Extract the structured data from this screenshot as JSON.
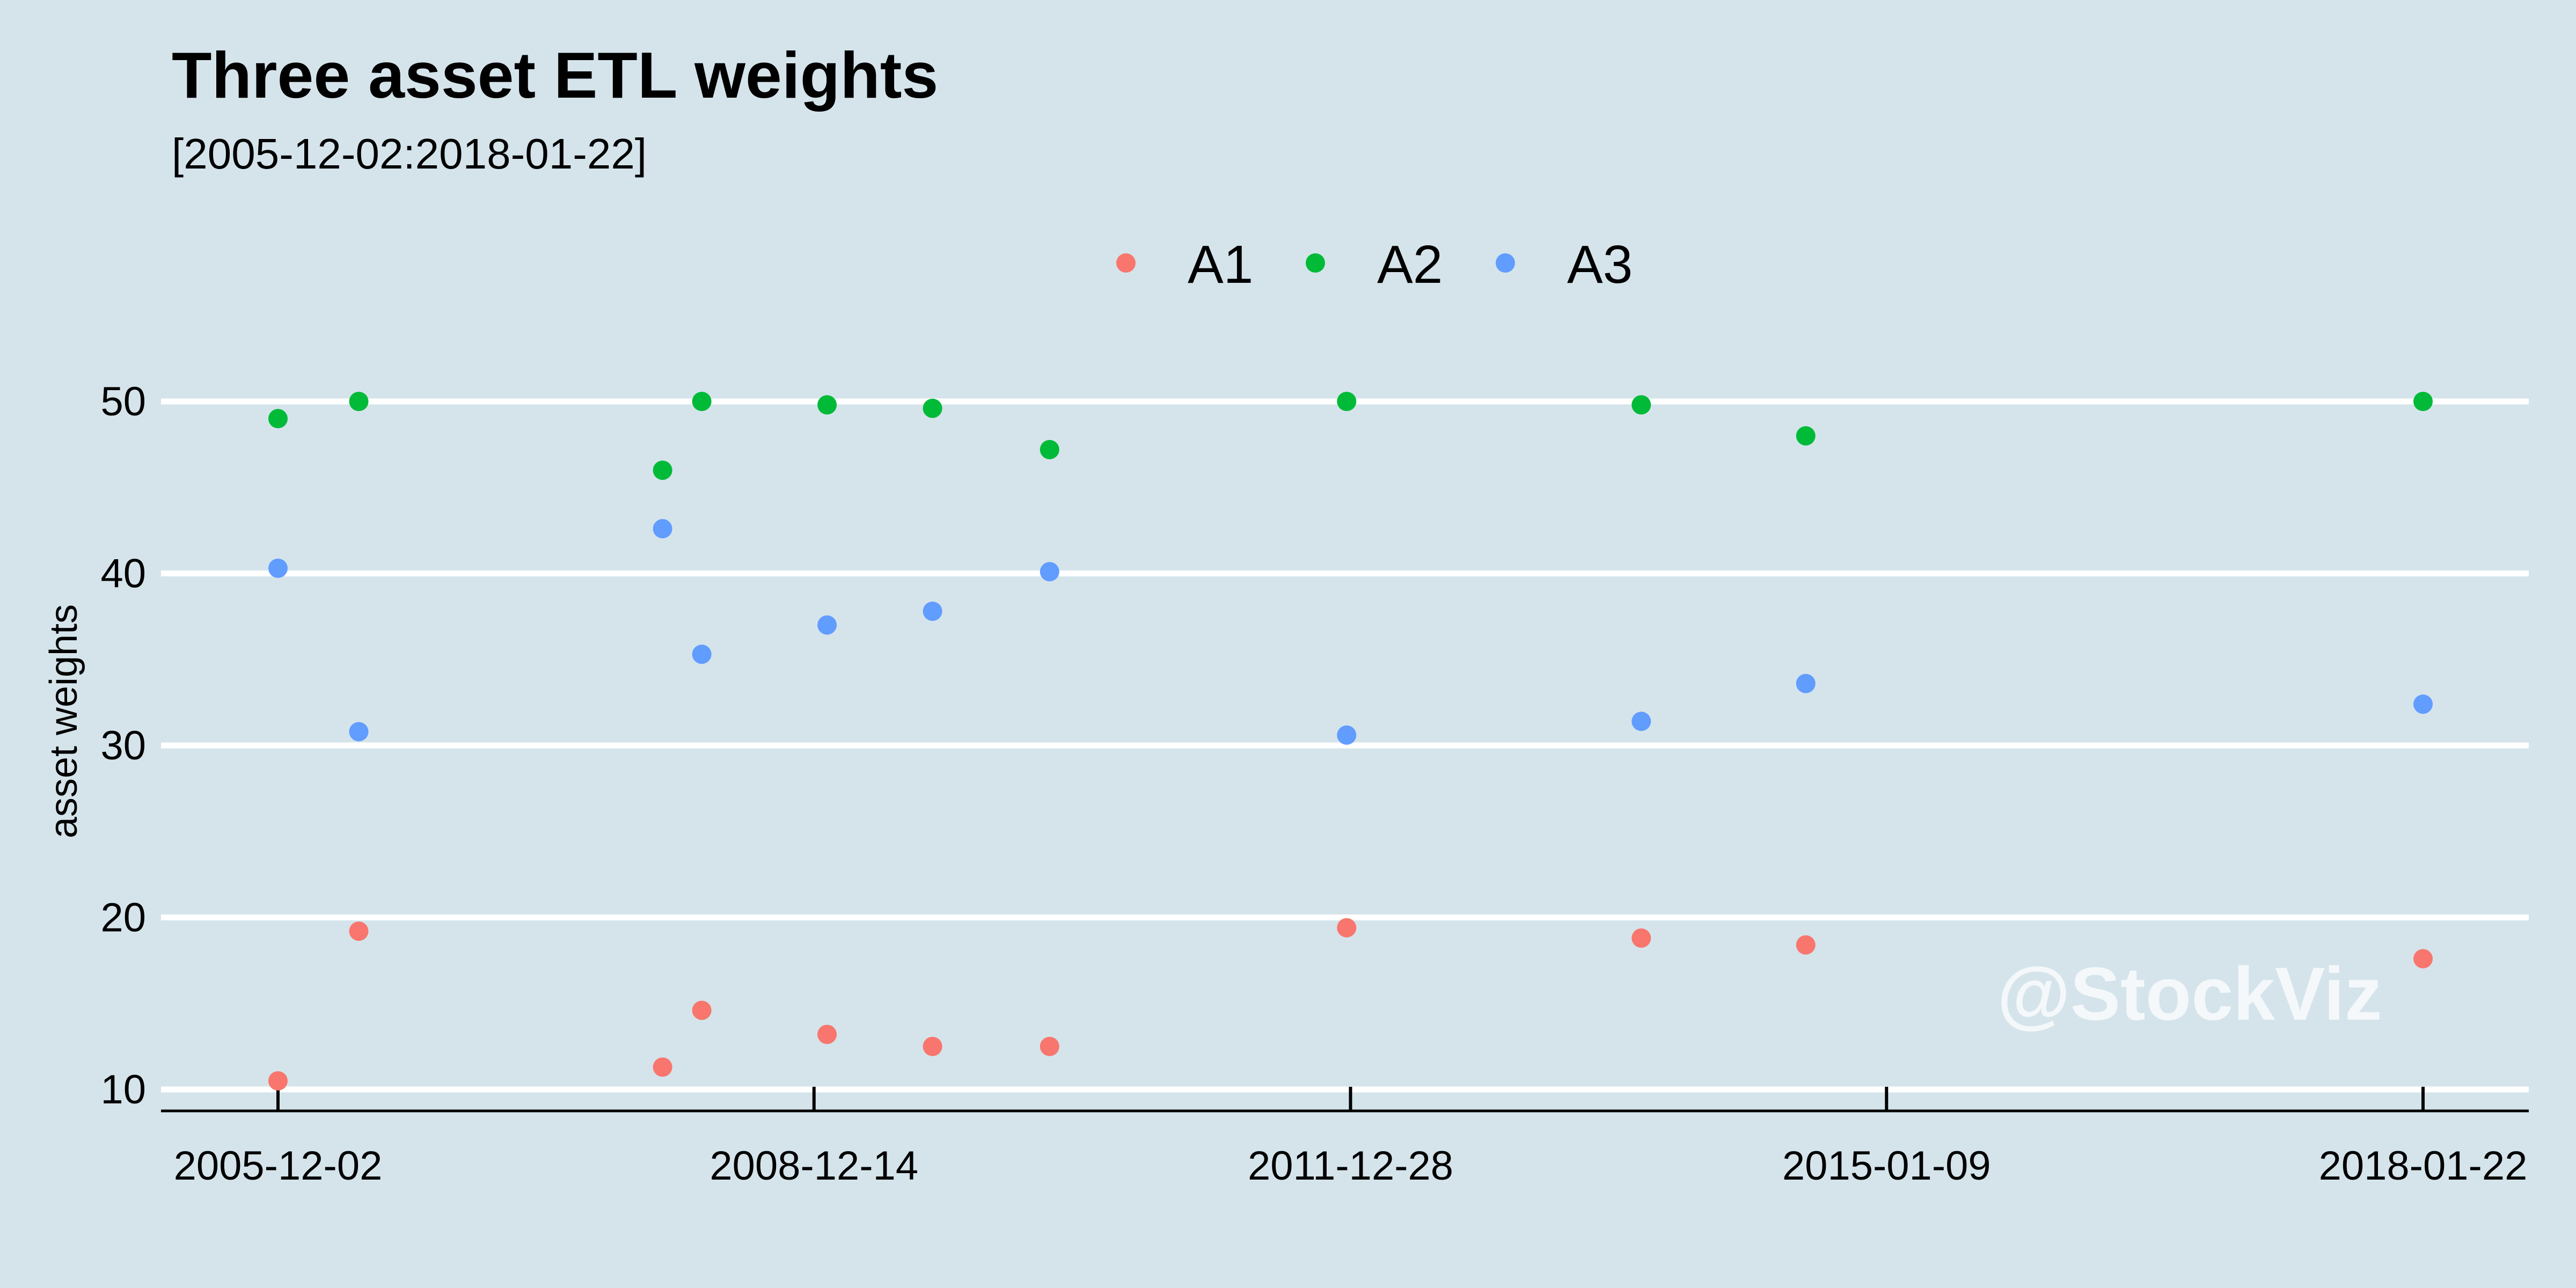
{
  "chart_data": {
    "type": "scatter",
    "title": "Three asset ETL weights",
    "subtitle": "[2005-12-02:2018-01-22]",
    "ylabel": "asset weights",
    "xlabel": "",
    "xlim": [
      "2005-12-02",
      "2018-01-22"
    ],
    "ylim": [
      10,
      50
    ],
    "yticks": [
      10,
      20,
      30,
      40,
      50
    ],
    "xticks": [
      "2005-12-02",
      "2008-12-14",
      "2011-12-28",
      "2015-01-09",
      "2018-01-22"
    ],
    "grid": "horizontal",
    "legend_position": "top",
    "x": [
      "2005-12-02",
      "2006-05-18",
      "2008-02-05",
      "2008-04-26",
      "2009-01-10",
      "2009-08-16",
      "2010-04-15",
      "2011-12-20",
      "2013-08-20",
      "2014-07-26",
      "2018-01-22"
    ],
    "series": [
      {
        "name": "A1",
        "color": "#f8766d",
        "values": [
          10.5,
          19.2,
          11.3,
          14.6,
          13.2,
          12.5,
          12.5,
          19.4,
          18.8,
          18.4,
          17.6
        ]
      },
      {
        "name": "A2",
        "color": "#00ba38",
        "values": [
          49.0,
          50.0,
          46.0,
          50.0,
          49.8,
          49.6,
          47.2,
          50.0,
          49.8,
          48.0,
          50.0
        ]
      },
      {
        "name": "A3",
        "color": "#619cff",
        "values": [
          40.3,
          30.8,
          42.6,
          35.3,
          37.0,
          37.8,
          40.1,
          30.6,
          31.4,
          33.6,
          32.4
        ]
      }
    ]
  },
  "watermark": "@StockViz",
  "colors": {
    "background": "#d5e4eb",
    "grid": "#ffffff",
    "axis": "#000000"
  }
}
